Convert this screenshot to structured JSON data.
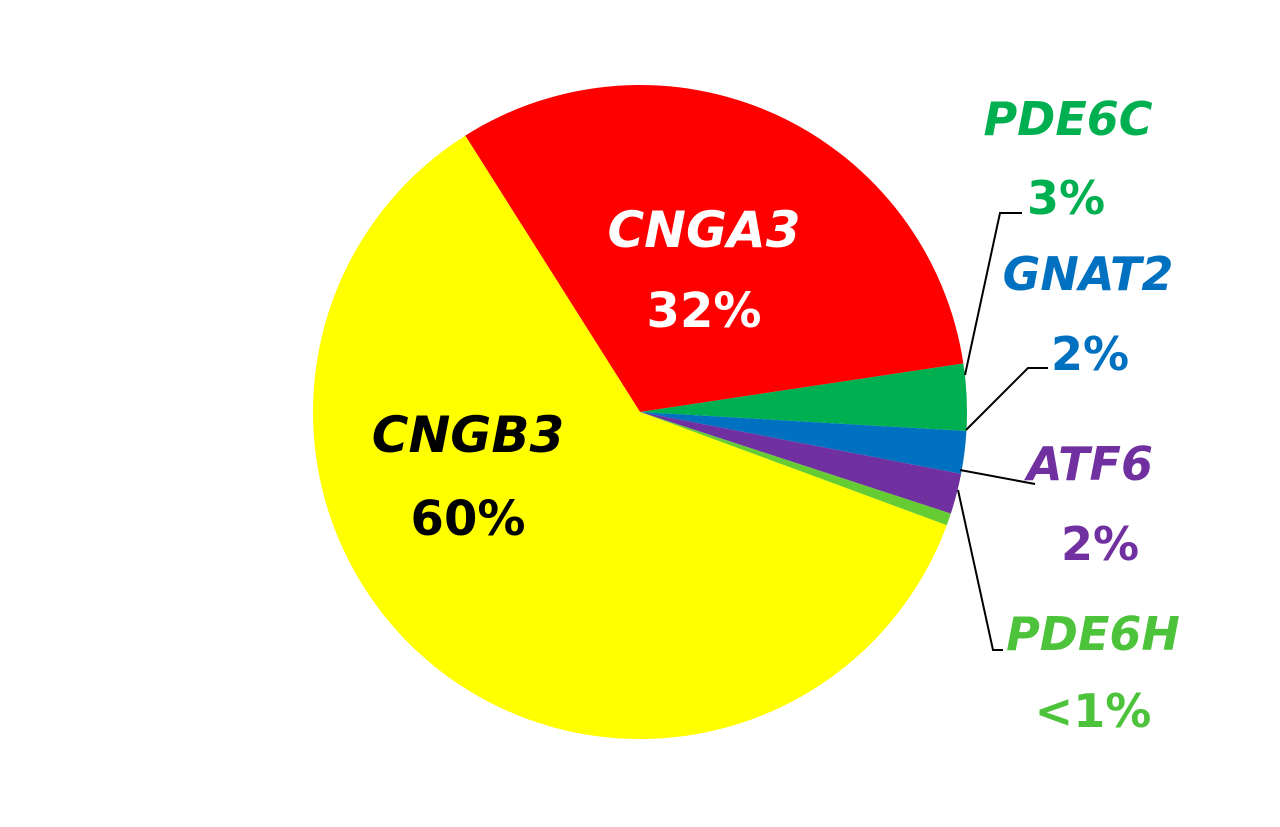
{
  "chart_data": {
    "type": "pie",
    "title": "",
    "slices": [
      {
        "name": "CNGB3",
        "pct_label": "60%",
        "value": 60.4,
        "color": "#ffff00",
        "label_color": "#000000"
      },
      {
        "name": "CNGA3",
        "pct_label": "32%",
        "value": 31.6,
        "color": "#ff0000",
        "label_color": "#ffffff"
      },
      {
        "name": "PDE6C",
        "pct_label": "3%",
        "value": 3.3,
        "color": "#00b050",
        "label_color": "#00b050"
      },
      {
        "name": "GNAT2",
        "pct_label": "2%",
        "value": 2.1,
        "color": "#0070c0",
        "label_color": "#0070c0"
      },
      {
        "name": "ATF6",
        "pct_label": "2%",
        "value": 2.0,
        "color": "#7030a0",
        "label_color": "#7030a0"
      },
      {
        "name": "PDE6H",
        "pct_label": "<1%",
        "value": 0.6,
        "color": "#66cc33",
        "label_color": "#4cc33a"
      }
    ]
  }
}
